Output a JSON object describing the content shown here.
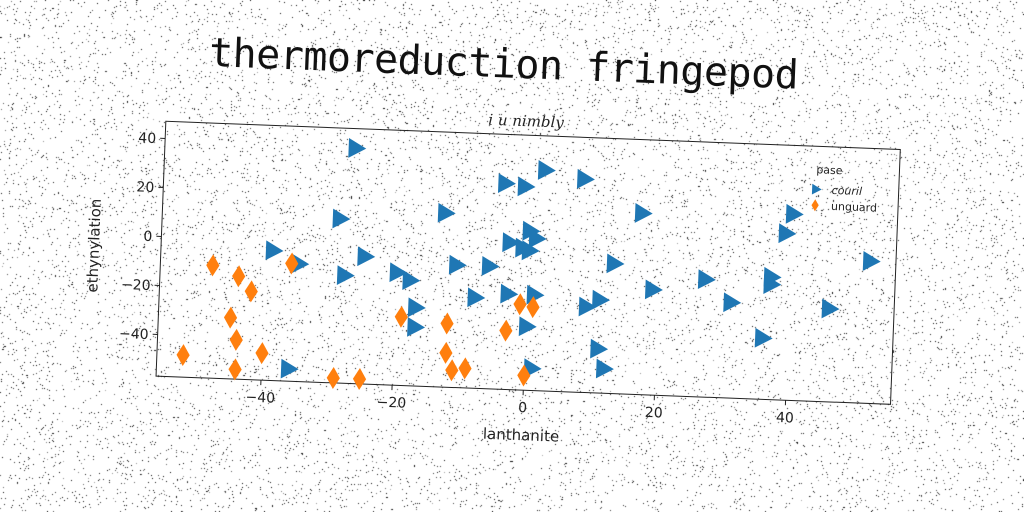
{
  "title": "thermoreduction fringepod",
  "chart_data": {
    "type": "scatter",
    "subtitle": "i u nimbly",
    "xlabel": "lanthanite",
    "ylabel": "ethynylation",
    "xlim": [
      -56,
      56
    ],
    "ylim": [
      -57,
      47
    ],
    "xticks": [
      -40,
      -20,
      0,
      20,
      40
    ],
    "yticks": [
      -40,
      -20,
      0,
      20,
      40
    ],
    "grid": false,
    "legend": {
      "title": "pase",
      "position": "top-right"
    },
    "series": [
      {
        "name": "couril",
        "marker": "triangle-right",
        "color": "#1f77b4",
        "points": [
          [
            -27,
            39
          ],
          [
            2,
            33
          ],
          [
            8,
            30
          ],
          [
            -4,
            27
          ],
          [
            -1,
            26
          ],
          [
            17,
            17
          ],
          [
            40,
            19
          ],
          [
            39,
            11
          ],
          [
            -13,
            14
          ],
          [
            -29,
            10
          ],
          [
            0,
            8
          ],
          [
            1,
            5
          ],
          [
            -3,
            3
          ],
          [
            -1,
            1
          ],
          [
            0,
            0
          ],
          [
            52,
            1
          ],
          [
            -39,
            -4
          ],
          [
            -25,
            -5
          ],
          [
            13,
            -4
          ],
          [
            -11,
            -7
          ],
          [
            -6,
            -7
          ],
          [
            27,
            -9
          ],
          [
            37,
            -7
          ],
          [
            37,
            -10
          ],
          [
            -35,
            -9
          ],
          [
            -28,
            -13
          ],
          [
            -20,
            -11
          ],
          [
            -18,
            -14
          ],
          [
            19,
            -14
          ],
          [
            11,
            -19
          ],
          [
            1,
            -18
          ],
          [
            -3,
            -18
          ],
          [
            31,
            -18
          ],
          [
            46,
            -19
          ],
          [
            -8,
            -20
          ],
          [
            9,
            -22
          ],
          [
            -17,
            -25
          ],
          [
            0,
            -31
          ],
          [
            -17,
            -33
          ],
          [
            36,
            -32
          ],
          [
            11,
            -39
          ],
          [
            12,
            -47
          ],
          [
            1,
            -48
          ],
          [
            -36,
            -52
          ]
        ]
      },
      {
        "name": "unguard",
        "marker": "thin-diamond",
        "color": "#ff7f0e",
        "points": [
          [
            -48,
            -11
          ],
          [
            -44,
            -15
          ],
          [
            -42,
            -21
          ],
          [
            -36,
            -9
          ],
          [
            -45,
            -32
          ],
          [
            -44,
            -41
          ],
          [
            -40,
            -46
          ],
          [
            -52,
            -48
          ],
          [
            -44,
            -53
          ],
          [
            -29,
            -55
          ],
          [
            -25,
            -55
          ],
          [
            -19,
            -29
          ],
          [
            -12,
            -31
          ],
          [
            -12,
            -43
          ],
          [
            -11,
            -50
          ],
          [
            -9,
            -49
          ],
          [
            -3,
            -33
          ],
          [
            -1,
            -22
          ],
          [
            1,
            -23
          ],
          [
            0,
            -51
          ]
        ]
      }
    ]
  }
}
